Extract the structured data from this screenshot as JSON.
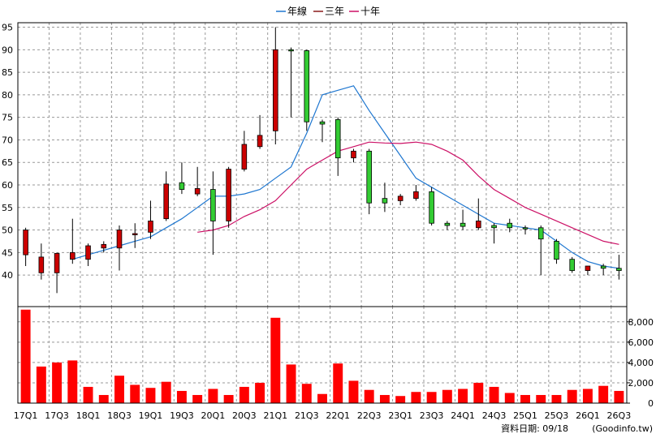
{
  "chart_data": {
    "type": "candlestick",
    "legend": {
      "placement": "top-center",
      "items": [
        {
          "label": "年線",
          "color": "#1f77d0"
        },
        {
          "label": "三年",
          "color": "#8b1a1a"
        },
        {
          "label": "十年",
          "color": "#cc1166"
        }
      ]
    },
    "colors": {
      "up": "#cc0000",
      "down": "#33cc33",
      "volume": "#ff0000",
      "grid": "#999999"
    },
    "price_axis": {
      "range": [
        33,
        96
      ],
      "ticks": [
        40,
        45,
        50,
        55,
        60,
        65,
        70,
        75,
        80,
        85,
        90,
        95
      ]
    },
    "volume_axis": {
      "range": [
        0,
        9500
      ],
      "ticks": [
        "0",
        "2,000",
        "4,000",
        "6,000",
        "8,000"
      ],
      "tick_values": [
        0,
        2000,
        4000,
        6000,
        8000
      ]
    },
    "x_labels": [
      "17Q1",
      "17Q3",
      "18Q1",
      "18Q3",
      "19Q1",
      "19Q3",
      "20Q1",
      "20Q3",
      "21Q1",
      "21Q3",
      "22Q1",
      "22Q3",
      "23Q1",
      "23Q3",
      "24Q1",
      "24Q3",
      "25Q1",
      "25Q3",
      "26Q1",
      "26Q3"
    ],
    "candles": [
      {
        "q": "17Q1",
        "o": 44.5,
        "h": 50.5,
        "l": 42,
        "c": 50
      },
      {
        "q": "17Q2",
        "o": 40.5,
        "h": 47,
        "l": 39,
        "c": 44
      },
      {
        "q": "17Q3",
        "o": 40.5,
        "h": 45,
        "l": 36,
        "c": 44.8
      },
      {
        "q": "17Q4",
        "o": 43.5,
        "h": 52.5,
        "l": 42.5,
        "c": 45
      },
      {
        "q": "18Q1",
        "o": 43.5,
        "h": 47,
        "l": 42,
        "c": 46.5
      },
      {
        "q": "18Q2",
        "o": 46,
        "h": 47.5,
        "l": 45,
        "c": 46.8
      },
      {
        "q": "18Q3",
        "o": 46,
        "h": 51,
        "l": 41,
        "c": 50
      },
      {
        "q": "18Q4",
        "o": 49,
        "h": 51.5,
        "l": 46,
        "c": 49.2
      },
      {
        "q": "19Q1",
        "o": 49.5,
        "h": 56.5,
        "l": 48,
        "c": 52
      },
      {
        "q": "19Q2",
        "o": 52.5,
        "h": 63,
        "l": 52,
        "c": 60.2
      },
      {
        "q": "19Q3",
        "o": 60.5,
        "h": 65,
        "l": 58,
        "c": 59
      },
      {
        "q": "19Q4",
        "o": 58,
        "h": 64,
        "l": 57.5,
        "c": 59.2
      },
      {
        "q": "20Q1",
        "o": 59,
        "h": 63,
        "l": 44.5,
        "c": 52
      },
      {
        "q": "20Q2",
        "o": 52,
        "h": 64,
        "l": 50.5,
        "c": 63.5
      },
      {
        "q": "20Q3",
        "o": 63.5,
        "h": 72,
        "l": 63,
        "c": 69
      },
      {
        "q": "20Q4",
        "o": 68.5,
        "h": 75.5,
        "l": 68,
        "c": 71
      },
      {
        "q": "21Q1",
        "o": 72,
        "h": 95,
        "l": 69,
        "c": 90
      },
      {
        "q": "21Q2",
        "o": 90,
        "h": 90.5,
        "l": 75,
        "c": 89.8
      },
      {
        "q": "21Q3",
        "o": 89.8,
        "h": 90,
        "l": 72,
        "c": 74
      },
      {
        "q": "21Q4",
        "o": 74,
        "h": 74.5,
        "l": 69.5,
        "c": 73.5
      },
      {
        "q": "22Q1",
        "o": 74.5,
        "h": 75,
        "l": 62,
        "c": 66
      },
      {
        "q": "22Q2",
        "o": 66,
        "h": 68,
        "l": 65,
        "c": 67.5
      },
      {
        "q": "22Q3",
        "o": 67.5,
        "h": 68,
        "l": 53.5,
        "c": 56
      },
      {
        "q": "22Q4",
        "o": 57,
        "h": 60.5,
        "l": 54,
        "c": 56
      },
      {
        "q": "23Q1",
        "o": 56.5,
        "h": 58,
        "l": 55.5,
        "c": 57.5
      },
      {
        "q": "23Q2",
        "o": 57,
        "h": 60,
        "l": 56.5,
        "c": 58.5
      },
      {
        "q": "23Q3",
        "o": 58.5,
        "h": 59.5,
        "l": 51,
        "c": 51.5
      },
      {
        "q": "23Q4",
        "o": 51.5,
        "h": 52,
        "l": 50,
        "c": 51
      },
      {
        "q": "24Q1",
        "o": 51.5,
        "h": 54.5,
        "l": 50,
        "c": 50.8
      },
      {
        "q": "24Q2",
        "o": 50.5,
        "h": 57,
        "l": 50,
        "c": 52
      },
      {
        "q": "24Q3",
        "o": 51,
        "h": 51.5,
        "l": 47,
        "c": 50.5
      },
      {
        "q": "24Q4",
        "o": 51.5,
        "h": 52.5,
        "l": 49.5,
        "c": 50.5
      },
      {
        "q": "25Q1",
        "o": 50.5,
        "h": 51,
        "l": 49,
        "c": 50.3
      },
      {
        "q": "25Q2",
        "o": 50.5,
        "h": 51,
        "l": 40,
        "c": 48
      },
      {
        "q": "25Q3",
        "o": 47.5,
        "h": 48,
        "l": 42.5,
        "c": 43.5
      },
      {
        "q": "25Q4",
        "o": 43.5,
        "h": 44,
        "l": 40.5,
        "c": 41
      },
      {
        "q": "26Q1",
        "o": 41,
        "h": 42,
        "l": 40,
        "c": 42
      },
      {
        "q": "26Q2",
        "o": 42,
        "h": 42.5,
        "l": 40,
        "c": 41.5
      },
      {
        "q": "26Q3",
        "o": 41.5,
        "h": 44.5,
        "l": 39,
        "c": 41
      }
    ],
    "ma_annual": [
      null,
      null,
      null,
      43.5,
      44.5,
      45.5,
      46.5,
      47.5,
      48.5,
      50.5,
      52.5,
      55,
      57.5,
      57.5,
      58,
      59,
      61.5,
      64,
      71.5,
      80,
      81,
      82,
      76.5,
      71.5,
      66.5,
      61.5,
      59.5,
      57.5,
      55.5,
      53.5,
      51.5,
      51,
      50.5,
      50,
      47.5,
      45,
      43,
      42,
      41.5
    ],
    "ma_3yr": [
      null,
      null,
      null,
      null,
      null,
      null,
      null,
      null,
      null,
      null,
      null,
      49.5,
      50,
      51,
      53,
      54.5,
      56.5,
      60,
      63.5,
      65.5,
      67.5,
      68.5,
      69.5,
      69.3,
      69.2,
      69.5,
      69,
      67.5,
      65.5,
      62,
      59,
      57,
      55,
      53.5,
      52,
      50.5,
      49,
      47.5,
      46.8
    ],
    "volume": [
      9200,
      3600,
      4000,
      4200,
      1600,
      800,
      2700,
      1800,
      1500,
      2100,
      1200,
      800,
      1400,
      800,
      1600,
      2000,
      8400,
      3800,
      1900,
      900,
      3900,
      2200,
      1300,
      800,
      700,
      1100,
      1100,
      1300,
      1400,
      2000,
      1600,
      1000,
      800,
      800,
      800,
      1300,
      1400,
      1700,
      1200
    ]
  },
  "footer": {
    "label": "資料日期: 09/18",
    "source": "(Goodinfo.tw)"
  }
}
